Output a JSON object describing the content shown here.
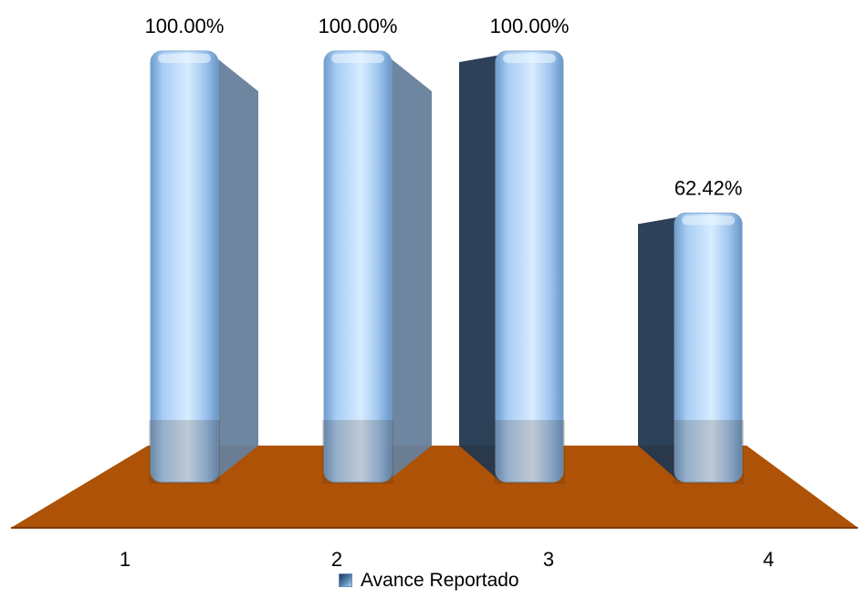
{
  "chart_data": {
    "type": "bar",
    "style": "3d-cylinder",
    "categories": [
      "1",
      "2",
      "3",
      "4"
    ],
    "series": [
      {
        "name": "Avance Reportado",
        "values": [
          100.0,
          100.0,
          100.0,
          62.42
        ]
      }
    ],
    "data_labels": [
      "100.00%",
      "100.00%",
      "100.00%",
      "62.42%"
    ],
    "ylim": [
      0,
      100
    ],
    "grid": false,
    "legend_position": "bottom",
    "colors": {
      "bar_light": "#cfe6ff",
      "bar_mid": "#8db8e8",
      "bar_dark": "#4f7aa6",
      "side_shadow": "#22374f",
      "floor": "#ad5206",
      "floor_edge": "#7f3a03"
    }
  }
}
